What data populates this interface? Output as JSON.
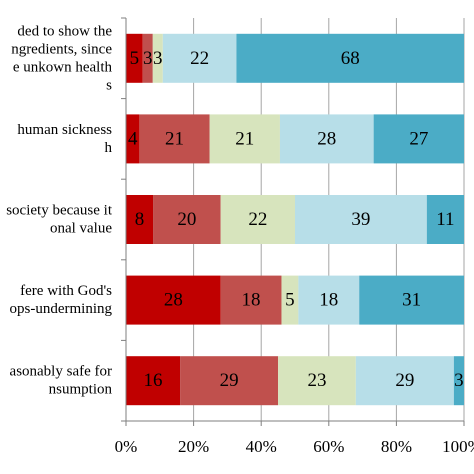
{
  "chart_data": {
    "type": "bar",
    "orientation": "horizontal",
    "stacked": true,
    "percent": true,
    "categories": [
      [
        "ded to show the",
        "ngredients, since",
        "e unkown health",
        "s"
      ],
      [
        "human sickness",
        "h"
      ],
      [
        "society because it",
        "onal value"
      ],
      [
        "fere with God's",
        "ops-undermining"
      ],
      [
        "asonably safe for",
        "nsumption"
      ]
    ],
    "series": [
      {
        "color": "#c00000",
        "values": [
          5,
          4,
          8,
          28,
          16
        ]
      },
      {
        "color": "#c0504d",
        "values": [
          3,
          21,
          20,
          18,
          29
        ]
      },
      {
        "color": "#d7e4bd",
        "values": [
          3,
          21,
          22,
          5,
          23
        ]
      },
      {
        "color": "#b7dee8",
        "values": [
          22,
          28,
          39,
          18,
          29
        ]
      },
      {
        "color": "#4bacc6",
        "values": [
          68,
          27,
          11,
          31,
          3
        ]
      }
    ],
    "segment_labels": [
      [
        "5",
        "3",
        "3",
        "22",
        "68"
      ],
      [
        "4",
        "21",
        "21",
        "28",
        "27"
      ],
      [
        "8",
        "20",
        "22",
        "39",
        "11"
      ],
      [
        "28",
        "18",
        "5",
        "18",
        "31"
      ],
      [
        "16",
        "29",
        "23",
        "29",
        "3"
      ]
    ],
    "xlim": [
      0,
      100
    ],
    "xticks": [
      "0%",
      "20%",
      "40%",
      "60%",
      "80%",
      "100%"
    ],
    "grid": true,
    "legend": "none"
  }
}
